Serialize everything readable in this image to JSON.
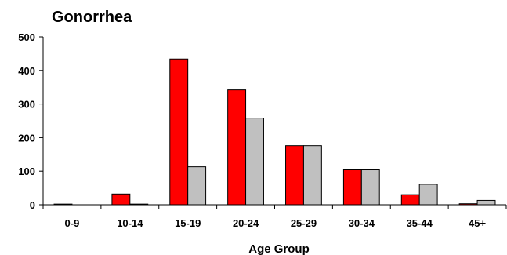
{
  "chart_data": {
    "type": "bar",
    "title": "Gonorrhea",
    "xlabel": "Age Group",
    "ylabel": "",
    "ylim": [
      0,
      500
    ],
    "yticks": [
      "0",
      "100",
      "200",
      "300",
      "400",
      "500"
    ],
    "categories": [
      "0-9",
      "10-14",
      "15-19",
      "20-24",
      "25-29",
      "30-34",
      "35-44",
      "45+"
    ],
    "series": [
      {
        "values": [
          2,
          32,
          434,
          342,
          176,
          104,
          30,
          3
        ],
        "color": "#ff0000"
      },
      {
        "values": [
          0,
          2,
          113,
          258,
          176,
          104,
          61,
          13
        ],
        "color": "#c0c0c0"
      }
    ],
    "grid": false,
    "legend": "none"
  }
}
